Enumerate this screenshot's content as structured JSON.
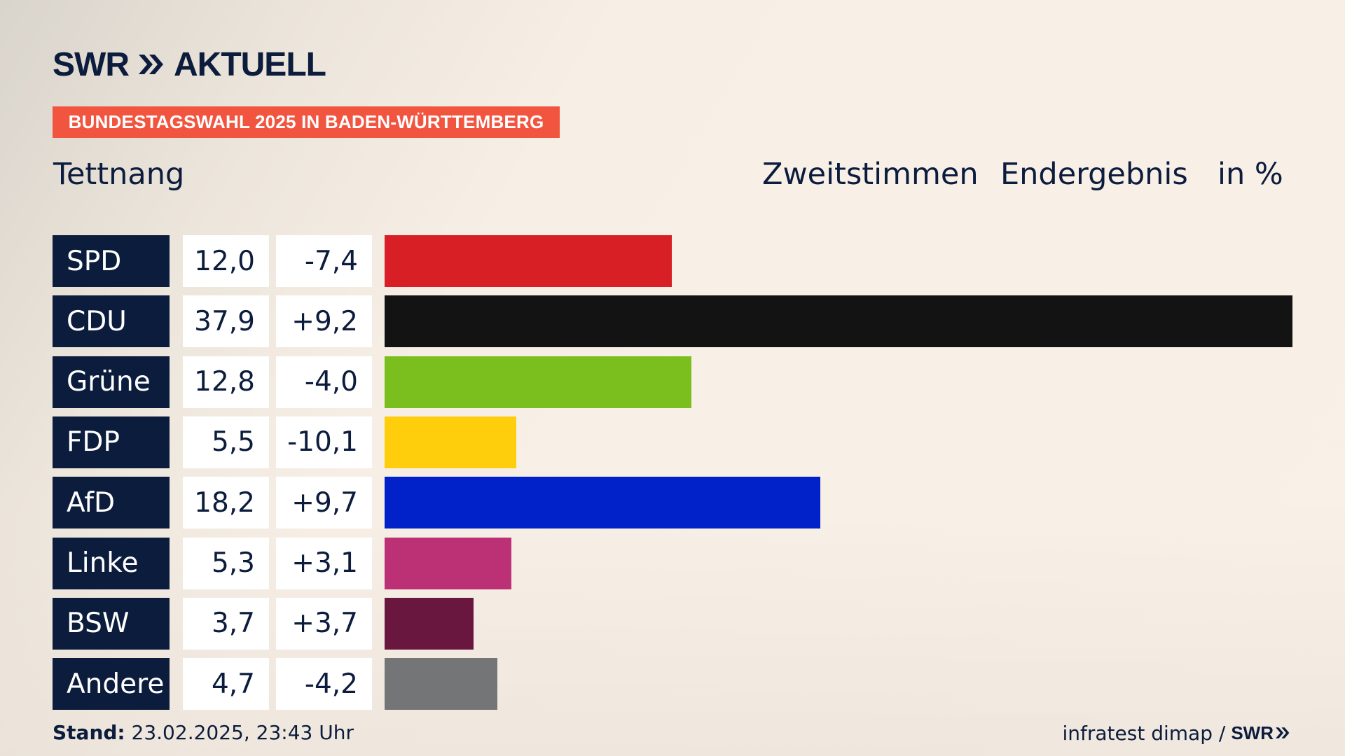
{
  "brand": {
    "logo_text": "SWR",
    "logo_suffix": "AKTUELL",
    "color": "#0c1c3d"
  },
  "banner": {
    "text": "BUNDESTAGSWAHL 2025 IN BADEN-WÜRTTEMBERG",
    "color": "#f2553f"
  },
  "header": {
    "location": "Tettnang",
    "measure": "Zweitstimmen",
    "status": "Endergebnis",
    "unit": "in %"
  },
  "chart_data": {
    "type": "bar",
    "orientation": "horizontal",
    "categories": [
      "SPD",
      "CDU",
      "Grüne",
      "FDP",
      "AfD",
      "Linke",
      "BSW",
      "Andere"
    ],
    "values": [
      12.0,
      37.9,
      12.8,
      5.5,
      18.2,
      5.3,
      3.7,
      4.7
    ],
    "value_labels": [
      "12,0",
      "37,9",
      "12,8",
      "5,5",
      "18,2",
      "5,3",
      "3,7",
      "4,7"
    ],
    "differences": [
      -7.4,
      9.2,
      -4.0,
      -10.1,
      9.7,
      3.1,
      3.7,
      -4.2
    ],
    "difference_labels": [
      "-7,4",
      "+9,2",
      "-4,0",
      "-10,1",
      "+9,7",
      "+3,1",
      "+3,7",
      "-4,2"
    ],
    "colors": [
      "#d81f26",
      "#131313",
      "#7bbf1e",
      "#fecd0c",
      "#0022c8",
      "#bc3075",
      "#6a1740",
      "#737576"
    ],
    "xlim": [
      0,
      37.9
    ]
  },
  "footer": {
    "stand_label": "Stand:",
    "stand_value": "23.02.2025, 23:43 Uhr",
    "source": "infratest dimap /",
    "source_logo": "SWR"
  }
}
